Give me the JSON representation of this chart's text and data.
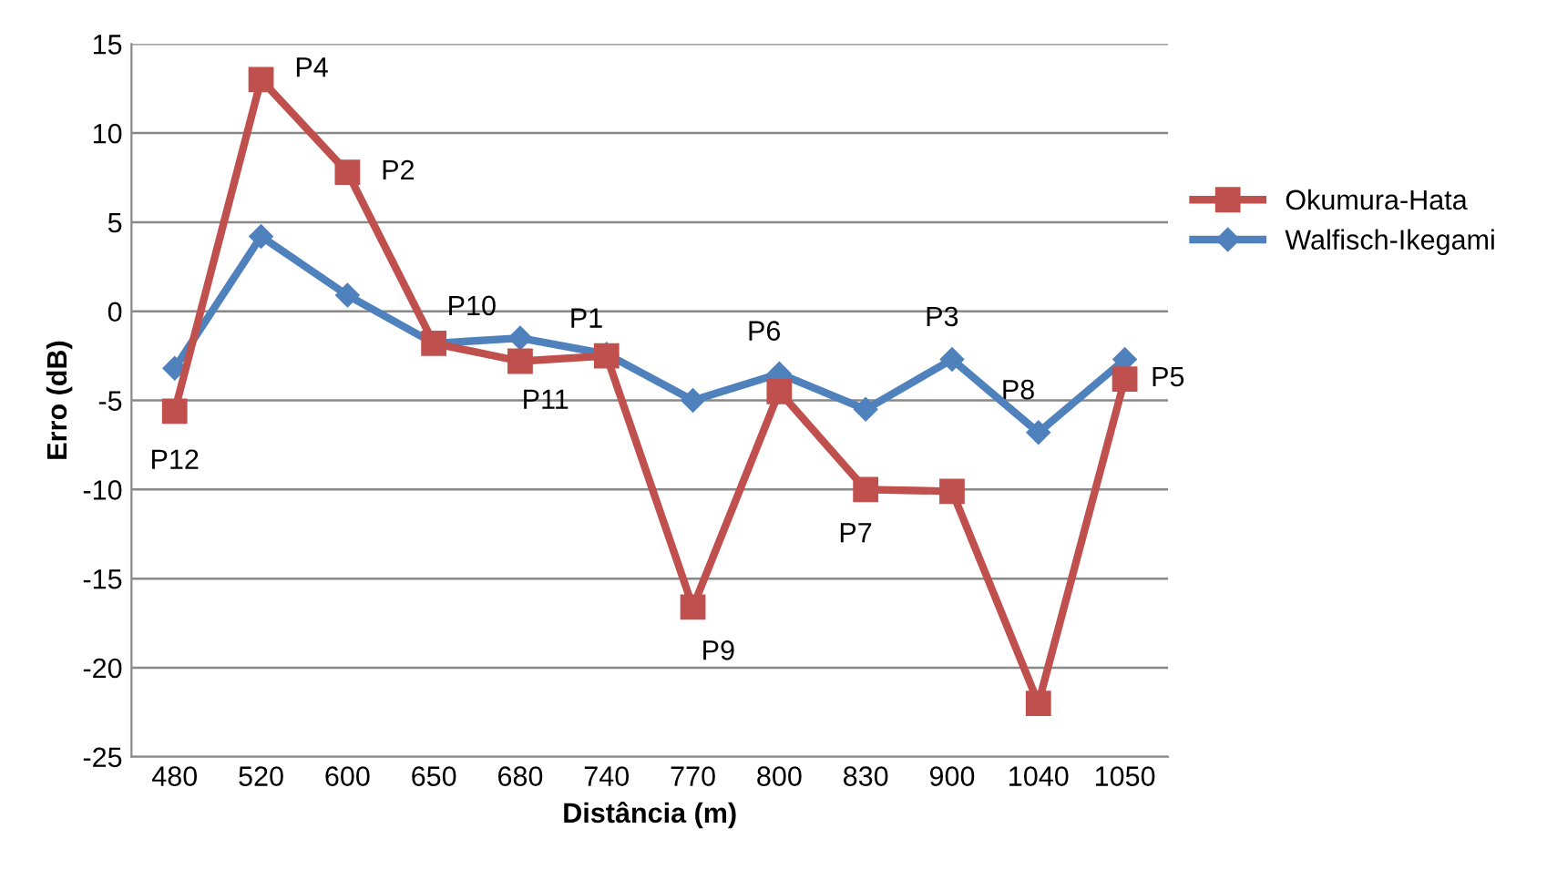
{
  "chart_data": {
    "type": "line",
    "xlabel": "Distância (m)",
    "ylabel": "Erro (dB)",
    "categories": [
      "480",
      "520",
      "600",
      "650",
      "680",
      "740",
      "770",
      "800",
      "830",
      "900",
      "1040",
      "1050"
    ],
    "series": [
      {
        "name": "Okumura-Hata",
        "color": "#c0504d",
        "marker": "square",
        "values": [
          -5.6,
          13,
          7.8,
          -1.8,
          -2.8,
          -2.5,
          -16.6,
          -4.5,
          -10,
          -10.1,
          -22,
          -3.8
        ]
      },
      {
        "name": "Walfisch-Ikegami",
        "color": "#4f81bd",
        "marker": "diamond",
        "values": [
          -3.2,
          4.2,
          0.9,
          -1.8,
          -1.5,
          -2.4,
          -5,
          -3.5,
          -5.5,
          -2.7,
          -6.8,
          -2.7
        ]
      }
    ],
    "annotations": [
      {
        "text": "P12",
        "x": "480",
        "y": -5.6
      },
      {
        "text": "P4",
        "x": "520",
        "y": 13
      },
      {
        "text": "P2",
        "x": "600",
        "y": 7.8
      },
      {
        "text": "P10",
        "x": "650",
        "y": -1.8
      },
      {
        "text": "P11",
        "x": "680",
        "y": -2.8
      },
      {
        "text": "P1",
        "x": "740",
        "y": -2.5
      },
      {
        "text": "P9",
        "x": "770",
        "y": -16.6
      },
      {
        "text": "P6",
        "x": "800",
        "y": -3.5
      },
      {
        "text": "P7",
        "x": "830",
        "y": -10
      },
      {
        "text": "P3",
        "x": "900",
        "y": -2.7
      },
      {
        "text": "P8",
        "x": "1040",
        "y": -6.8
      },
      {
        "text": "P5",
        "x": "1050",
        "y": -3.8
      }
    ],
    "ylim": [
      -25,
      15
    ],
    "yticks": [
      -25,
      -20,
      -15,
      -10,
      -5,
      0,
      5,
      10,
      15
    ],
    "grid": "y",
    "legend": "right",
    "line_style": "solid"
  }
}
